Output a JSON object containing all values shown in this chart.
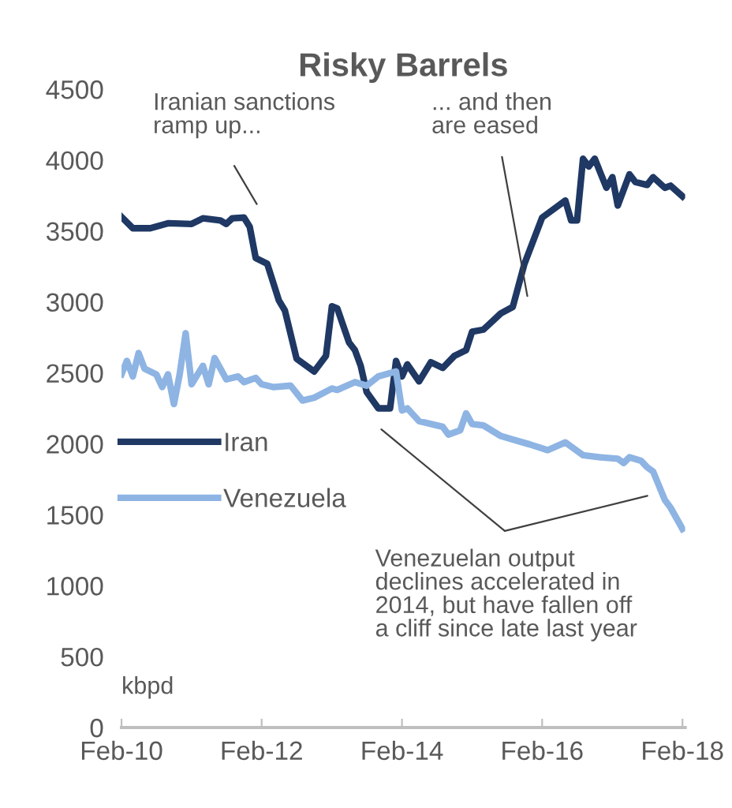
{
  "chart_data": {
    "type": "line",
    "title": "Risky Barrels",
    "ylabel": "kbpd",
    "xlim": [
      "2010-02-01",
      "2018-02-15"
    ],
    "ylim": [
      0,
      4500
    ],
    "xticks": [
      {
        "value": "2010-02",
        "label": "Feb-10"
      },
      {
        "value": "2012-02",
        "label": "Feb-12"
      },
      {
        "value": "2014-02",
        "label": "Feb-14"
      },
      {
        "value": "2016-02",
        "label": "Feb-16"
      },
      {
        "value": "2018-02",
        "label": "Feb-18"
      }
    ],
    "yticks": [
      0,
      500,
      1000,
      1500,
      2000,
      2500,
      3000,
      3500,
      4000,
      4500
    ],
    "grid": false,
    "legend": "left",
    "marker": "none",
    "line_style": "solid",
    "series": [
      {
        "name": "Iran",
        "color": "#1f3864",
        "x": [
          "2010-02",
          "2010-04",
          "2010-07",
          "2010-10",
          "2011-02",
          "2011-04",
          "2011-07",
          "2011-08",
          "2011-09",
          "2011-11",
          "2011-12",
          "2012-01",
          "2012-03",
          "2012-05",
          "2012-06",
          "2012-08",
          "2012-11",
          "2013-01",
          "2013-02",
          "2013-03",
          "2013-05",
          "2013-06",
          "2013-07",
          "2013-08",
          "2013-10",
          "2013-12",
          "2014-01",
          "2014-02",
          "2014-03",
          "2014-05",
          "2014-07",
          "2014-09",
          "2014-11",
          "2015-01",
          "2015-02",
          "2015-04",
          "2015-07",
          "2015-09",
          "2015-11",
          "2016-02",
          "2016-06",
          "2016-07",
          "2016-08",
          "2016-09",
          "2016-10",
          "2016-11",
          "2017-01",
          "2017-02",
          "2017-03",
          "2017-05",
          "2017-06",
          "2017-08",
          "2017-09",
          "2017-11",
          "2017-12",
          "2018-02"
        ],
        "values": [
          3600,
          3520,
          3520,
          3555,
          3550,
          3590,
          3575,
          3550,
          3590,
          3595,
          3530,
          3310,
          3270,
          3010,
          2940,
          2600,
          2510,
          2620,
          2970,
          2955,
          2715,
          2660,
          2550,
          2365,
          2250,
          2250,
          2585,
          2475,
          2560,
          2440,
          2575,
          2535,
          2620,
          2660,
          2790,
          2805,
          2920,
          2965,
          3270,
          3595,
          3715,
          3575,
          3575,
          4010,
          3955,
          4010,
          3805,
          3880,
          3680,
          3900,
          3845,
          3825,
          3880,
          3805,
          3820,
          3745
        ]
      },
      {
        "name": "Venezuela",
        "color": "#8eb4e3",
        "x": [
          "2010-02",
          "2010-03",
          "2010-04",
          "2010-05",
          "2010-06",
          "2010-08",
          "2010-09",
          "2010-10",
          "2010-11",
          "2010-12",
          "2011-01",
          "2011-02",
          "2011-04",
          "2011-05",
          "2011-06",
          "2011-08",
          "2011-10",
          "2011-11",
          "2012-01",
          "2012-02",
          "2012-04",
          "2012-07",
          "2012-09",
          "2012-11",
          "2013-02",
          "2013-03",
          "2013-06",
          "2013-08",
          "2013-10",
          "2014-01",
          "2014-02",
          "2014-03",
          "2014-05",
          "2014-09",
          "2014-10",
          "2014-12",
          "2015-01",
          "2015-02",
          "2015-04",
          "2015-07",
          "2015-09",
          "2015-12",
          "2016-03",
          "2016-06",
          "2016-09",
          "2016-12",
          "2017-03",
          "2017-04",
          "2017-05",
          "2017-07",
          "2017-08",
          "2017-09",
          "2017-11",
          "2017-12",
          "2018-02"
        ],
        "values": [
          2490,
          2585,
          2475,
          2640,
          2530,
          2490,
          2400,
          2490,
          2280,
          2490,
          2780,
          2420,
          2550,
          2420,
          2605,
          2455,
          2475,
          2435,
          2465,
          2420,
          2400,
          2410,
          2305,
          2325,
          2390,
          2380,
          2435,
          2410,
          2475,
          2510,
          2235,
          2250,
          2160,
          2120,
          2065,
          2095,
          2215,
          2140,
          2130,
          2055,
          2030,
          1995,
          1955,
          2010,
          1920,
          1905,
          1895,
          1865,
          1905,
          1880,
          1835,
          1805,
          1605,
          1550,
          1400
        ]
      }
    ],
    "annotations": [
      "Iranian sanctions\nramp up...",
      "... and then\nare eased",
      "Venezuelan output\ndeclines accelerated in\n2014, but have fallen off\na cliff since late last year"
    ]
  }
}
